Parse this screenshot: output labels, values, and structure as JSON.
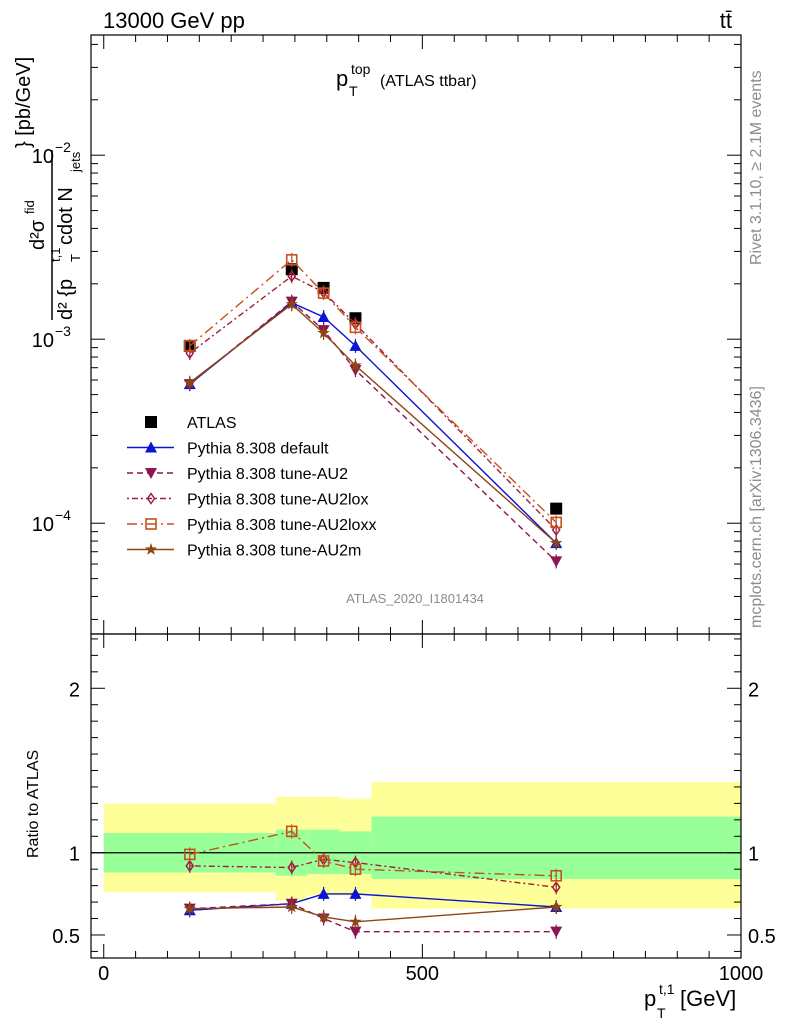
{
  "header": {
    "left": "13000 GeV pp",
    "right": "tt̄"
  },
  "plot_title": {
    "main": "p",
    "sup": "top",
    "sub": "T",
    "suffix": "(ATLAS ttbar)"
  },
  "side_labels": {
    "rivet": "Rivet 3.1.10, ≥ 2.1M events",
    "mcplots": "mcplots.cern.ch [arXiv:1306.3436]"
  },
  "watermark": "ATLAS_2020_I1801434",
  "ylabel_top": {
    "numer": "d²σ",
    "numer_sup": "fid",
    "denom": "d² {p",
    "denom_sup": "t,1",
    "denom_sub": "T",
    "denom_rest": " cdot N",
    "denom_rest_sub": "jets",
    "tail": "} [pb/GeV]"
  },
  "ylabel_bottom": "Ratio to ATLAS",
  "xlabel": {
    "main": "p",
    "sup": "t,1",
    "sub": "T",
    "unit": " [GeV]"
  },
  "colors": {
    "atlas": "#000000",
    "default": "#0a14d2",
    "au2": "#8c1450",
    "au2lox": "#a01e3c",
    "au2loxx": "#c8501e",
    "au2m": "#8c4614",
    "band_outer": "#ffff99",
    "band_inner": "#99ff99"
  },
  "chart_data": [
    {
      "type": "line",
      "yscale": "log",
      "xlim": [
        -20,
        1000
      ],
      "ylim": [
        2.5e-05,
        0.045
      ],
      "x_ticks": [
        0,
        500,
        1000
      ],
      "y_tick_labels": [
        {
          "value": 0.01,
          "base": "10",
          "exp": "−2"
        },
        {
          "value": 0.001,
          "base": "10",
          "exp": "−3"
        },
        {
          "value": 0.0001,
          "base": "10",
          "exp": "−4"
        }
      ],
      "legend_position": "bottom-left",
      "series": [
        {
          "name": "ATLAS",
          "key": "atlas",
          "marker": "square-filled",
          "dash": "none",
          "x": [
            135,
            295,
            345,
            395,
            710
          ],
          "y": [
            0.00092,
            0.0024,
            0.0019,
            0.0013,
            0.00012
          ]
        },
        {
          "name": "Pythia 8.308 default",
          "key": "default",
          "marker": "triangle-up",
          "dash": "solid",
          "x": [
            135,
            295,
            345,
            395,
            710
          ],
          "y": [
            0.00057,
            0.00158,
            0.00132,
            0.00092,
            7.8e-05
          ]
        },
        {
          "name": "Pythia 8.308 tune-AU2",
          "key": "au2",
          "marker": "triangle-down",
          "dash": "dashed",
          "x": [
            135,
            295,
            345,
            395,
            710
          ],
          "y": [
            0.00057,
            0.0016,
            0.00112,
            0.00068,
            6.2e-05
          ]
        },
        {
          "name": "Pythia 8.308 tune-AU2lox",
          "key": "au2lox",
          "marker": "diamond-open",
          "dash": "dashdot",
          "x": [
            135,
            295,
            345,
            395,
            710
          ],
          "y": [
            0.00084,
            0.0022,
            0.0018,
            0.00121,
            9.2e-05
          ]
        },
        {
          "name": "Pythia 8.308 tune-AU2loxx",
          "key": "au2loxx",
          "marker": "square-open",
          "dash": "dashdotlong",
          "x": [
            135,
            295,
            345,
            395,
            710
          ],
          "y": [
            0.00092,
            0.0027,
            0.00178,
            0.00116,
            0.000101
          ]
        },
        {
          "name": "Pythia 8.308 tune-AU2m",
          "key": "au2m",
          "marker": "star",
          "dash": "solid",
          "x": [
            135,
            295,
            345,
            395,
            710
          ],
          "y": [
            0.00058,
            0.00155,
            0.00108,
            0.00072,
            7.8e-05
          ]
        }
      ]
    },
    {
      "type": "line",
      "ylim": [
        0.36,
        2.33
      ],
      "xlim": [
        -20,
        1000
      ],
      "y_ticks": [
        0.5,
        1,
        2
      ],
      "bands": [
        {
          "x0": 0,
          "x1": 270,
          "outer": [
            0.76,
            1.3
          ],
          "inner": [
            0.88,
            1.12
          ]
        },
        {
          "x0": 270,
          "x1": 320,
          "outer": [
            0.71,
            1.34
          ],
          "inner": [
            0.86,
            1.14
          ]
        },
        {
          "x0": 320,
          "x1": 370,
          "outer": [
            0.74,
            1.34
          ],
          "inner": [
            0.87,
            1.14
          ]
        },
        {
          "x0": 370,
          "x1": 420,
          "outer": [
            0.74,
            1.33
          ],
          "inner": [
            0.87,
            1.13
          ]
        },
        {
          "x0": 420,
          "x1": 1000,
          "outer": [
            0.66,
            1.43
          ],
          "inner": [
            0.84,
            1.22
          ]
        }
      ],
      "series": [
        {
          "key": "default",
          "marker": "triangle-up",
          "dash": "solid",
          "x": [
            135,
            295,
            345,
            395,
            710
          ],
          "y": [
            0.65,
            0.69,
            0.75,
            0.75,
            0.67
          ]
        },
        {
          "key": "au2",
          "marker": "triangle-down",
          "dash": "dashed",
          "x": [
            135,
            295,
            345,
            395,
            710
          ],
          "y": [
            0.66,
            0.69,
            0.6,
            0.52,
            0.52
          ]
        },
        {
          "key": "au2lox",
          "marker": "diamond-open",
          "dash": "dashdot",
          "x": [
            135,
            295,
            345,
            395,
            710
          ],
          "y": [
            0.92,
            0.91,
            0.96,
            0.94,
            0.79
          ]
        },
        {
          "key": "au2loxx",
          "marker": "square-open",
          "dash": "dashdotlong",
          "x": [
            135,
            295,
            345,
            395,
            710
          ],
          "y": [
            0.99,
            1.13,
            0.95,
            0.9,
            0.86
          ]
        },
        {
          "key": "au2m",
          "marker": "star",
          "dash": "solid",
          "x": [
            135,
            295,
            345,
            395,
            710
          ],
          "y": [
            0.66,
            0.67,
            0.61,
            0.58,
            0.67
          ]
        }
      ]
    }
  ]
}
